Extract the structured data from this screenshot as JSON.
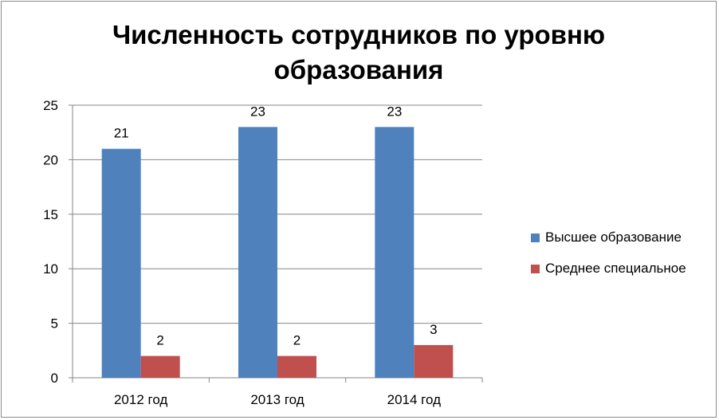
{
  "chart_data": {
    "type": "bar",
    "title": "Численность сотрудников по уровню образования",
    "categories": [
      "2012 год",
      "2013 год",
      "2014 год"
    ],
    "series": [
      {
        "name": "Высшее образование",
        "values": [
          21,
          23,
          23
        ],
        "color": "#4f81bd"
      },
      {
        "name": "Среднее специальное",
        "values": [
          2,
          2,
          3
        ],
        "color": "#c0504d"
      }
    ],
    "ylim": [
      0,
      25
    ],
    "yticks": [
      0,
      5,
      10,
      15,
      20,
      25
    ],
    "grid": true,
    "legend": "right"
  }
}
